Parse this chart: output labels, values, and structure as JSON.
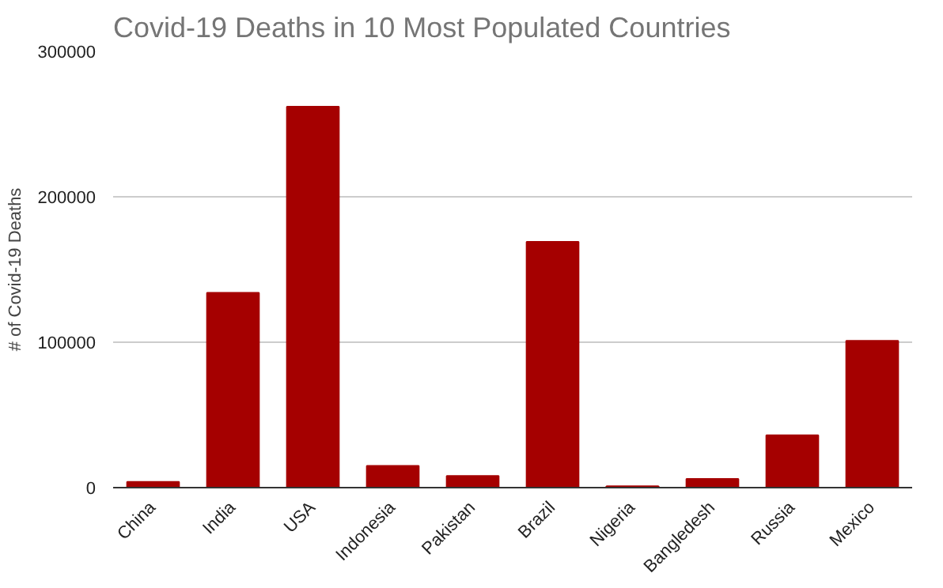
{
  "chart_data": {
    "type": "bar",
    "title": "Covid-19 Deaths in 10 Most Populated Countries",
    "ylabel": "# of Covid-19 Deaths",
    "categories": [
      "China",
      "India",
      "USA",
      "Indonesia",
      "Pakistan",
      "Brazil",
      "Nigeria",
      "Bangledesh",
      "Russia",
      "Mexico"
    ],
    "values": [
      4000,
      134000,
      262000,
      15000,
      8000,
      169000,
      1000,
      6000,
      36000,
      101000
    ],
    "color": "#a50000",
    "ylim": [
      0,
      300000
    ],
    "yticks": [
      0,
      100000,
      200000,
      300000
    ],
    "grid": "y"
  }
}
